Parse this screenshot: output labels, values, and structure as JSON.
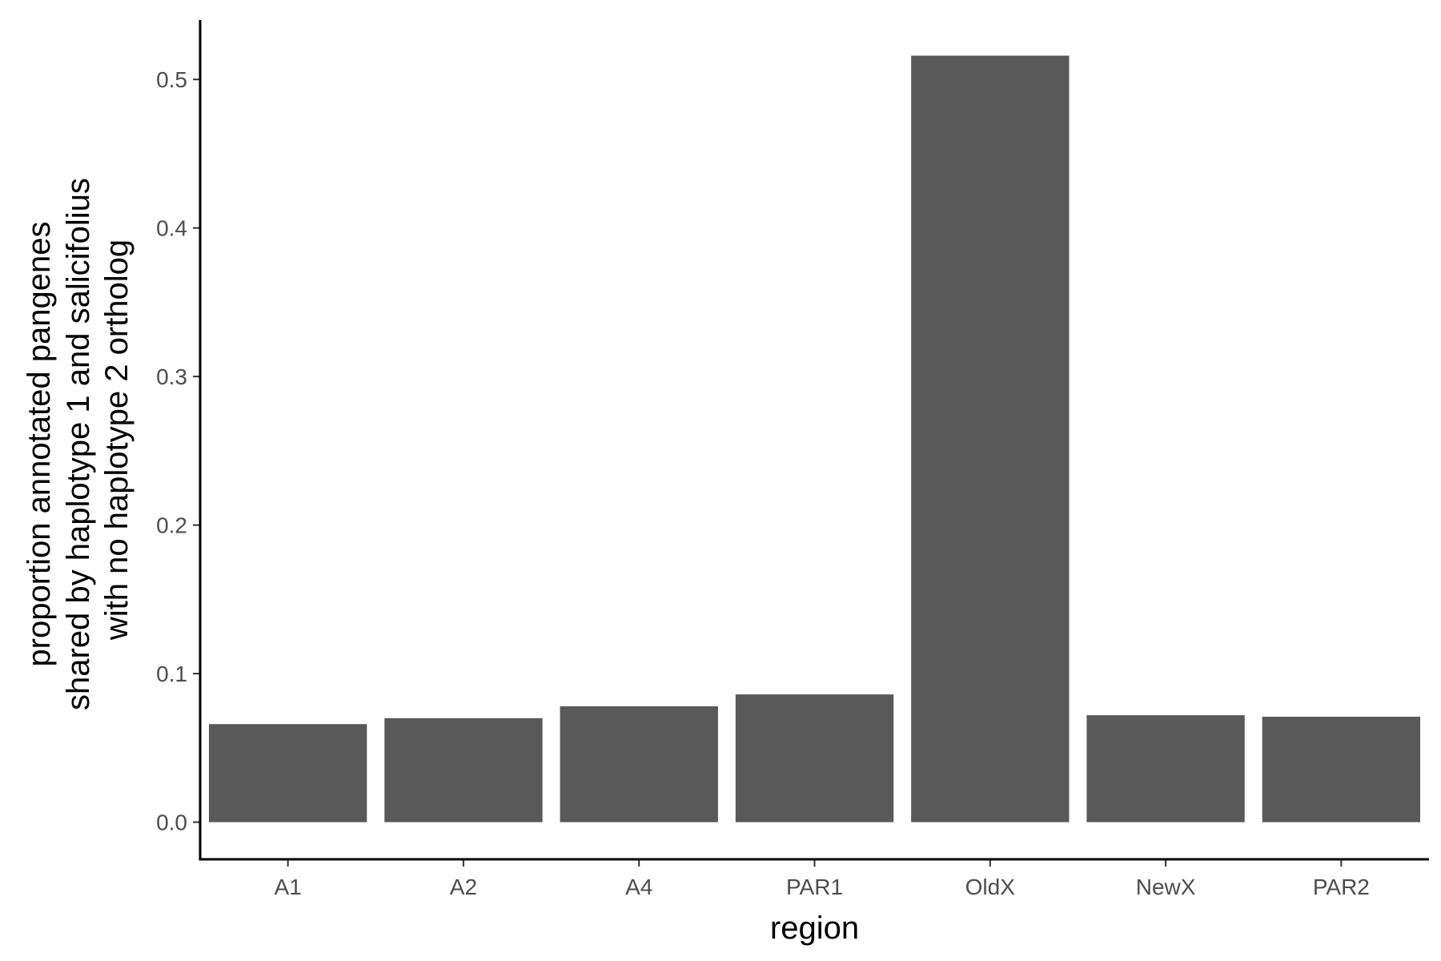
{
  "chart_data": {
    "type": "bar",
    "title": "",
    "xlabel": "region",
    "ylabel_lines": [
      "proportion annotated pangenes",
      "shared by haplotype 1 and salicifolius",
      "with no haplotype 2 ortholog"
    ],
    "categories": [
      "A1",
      "A2",
      "A4",
      "PAR1",
      "OldX",
      "NewX",
      "PAR2"
    ],
    "values": [
      0.066,
      0.07,
      0.078,
      0.086,
      0.516,
      0.072,
      0.071
    ],
    "ylim": [
      -0.025,
      0.54
    ],
    "yticks": [
      0.0,
      0.1,
      0.2,
      0.3,
      0.4,
      0.5
    ],
    "ytick_labels": [
      "0.0",
      "0.1",
      "0.2",
      "0.3",
      "0.4",
      "0.5"
    ],
    "grid": false,
    "legend": "none",
    "colors": {
      "bar": "#595959",
      "axis": "#000000",
      "tick_label": "#4d4d4d"
    }
  }
}
